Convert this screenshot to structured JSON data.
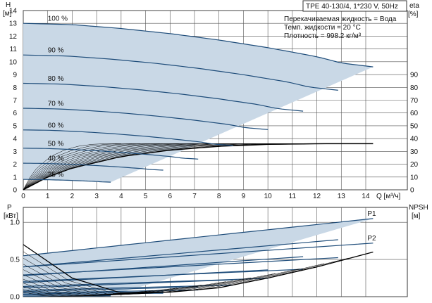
{
  "title": "TPE 40-130/4, 1*230 V, 50Hz",
  "info_lines": [
    "Перекачиваемая жидкость = Вода",
    "Темп. жидкости = 20 °C",
    "Плотность = 998.2 кг/м³"
  ],
  "colors": {
    "envelope_fill": "#c9d8e6",
    "head_curve": "#1f4d7a",
    "efficiency_curve": "#000000",
    "power_curve": "#1f4d7a",
    "grid": "#555555"
  },
  "chart_data": [
    {
      "type": "line",
      "panel": "head",
      "xlabel": "Q [м³/ч]",
      "ylabel_left": [
        "H",
        "[м]"
      ],
      "ylabel_right": [
        "eta",
        "[%]"
      ],
      "x_ticks": [
        0,
        1,
        2,
        3,
        4,
        5,
        6,
        7,
        8,
        9,
        10,
        11,
        12,
        13,
        14
      ],
      "xlim": [
        0,
        15.7
      ],
      "ylim": [
        0,
        14
      ],
      "y_ticks": [
        0,
        1,
        2,
        3,
        4,
        5,
        6,
        7,
        8,
        9,
        10,
        11,
        12,
        13,
        14
      ],
      "eta_ticks": [
        0,
        10,
        20,
        30,
        40,
        50,
        60,
        70,
        80,
        90
      ],
      "eta_lim": [
        0,
        140
      ],
      "grid": true,
      "speed_curves": [
        {
          "label": "100 %",
          "speed": 1.0
        },
        {
          "label": "90 %",
          "speed": 0.9
        },
        {
          "label": "80 %",
          "speed": 0.8
        },
        {
          "label": "70 %",
          "speed": 0.7
        },
        {
          "label": "60 %",
          "speed": 0.6
        },
        {
          "label": "50 %",
          "speed": 0.5
        },
        {
          "label": "40 %",
          "speed": 0.4
        },
        {
          "label": "25 %",
          "speed": 0.25
        }
      ],
      "head_max_curve": {
        "x": [
          0,
          2,
          4,
          6,
          8,
          10,
          12,
          13,
          14.3
        ],
        "y": [
          13.0,
          12.9,
          12.6,
          12.2,
          11.7,
          11.1,
          10.4,
          9.9,
          9.6
        ]
      },
      "efficiency_max_curve": {
        "x": [
          0,
          1,
          2,
          4,
          6,
          8,
          10,
          12,
          14.3
        ],
        "eta": [
          0,
          10,
          17,
          26,
          31,
          34,
          35.5,
          36,
          36
        ]
      }
    },
    {
      "type": "line",
      "panel": "power",
      "ylabel_left": [
        "P",
        "[кВт]"
      ],
      "ylabel_right": [
        "NPSH",
        "[м]"
      ],
      "xlim": [
        0,
        15.7
      ],
      "ylim": [
        0,
        1.2
      ],
      "y_ticks": [
        0.0,
        0.5,
        1.0
      ],
      "y_tick_labels": [
        "0.0",
        "0.5",
        "1.0"
      ],
      "grid": true,
      "series": [
        {
          "name": "P1",
          "x": [
            0,
            14.3
          ],
          "y": [
            0.55,
            1.05
          ]
        },
        {
          "name": "P2",
          "x": [
            0,
            14.3
          ],
          "y": [
            0.4,
            0.72
          ]
        }
      ],
      "npsh_curve": {
        "x": [
          0,
          2,
          4,
          6,
          8,
          10,
          12,
          14.3
        ],
        "y": [
          0.7,
          0.25,
          0.05,
          0.06,
          0.12,
          0.25,
          0.4,
          0.6
        ]
      }
    }
  ]
}
